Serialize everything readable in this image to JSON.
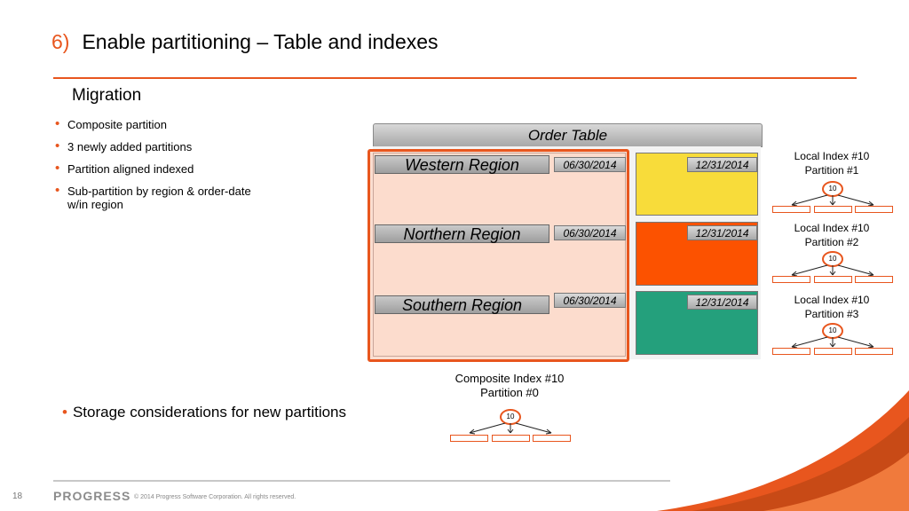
{
  "slide": {
    "number_prefix": "6)",
    "title": "Enable partitioning – Table and indexes",
    "subtitle": "Migration",
    "bullets": [
      "Composite  partition",
      "3 newly added partitions",
      "Partition aligned indexed",
      "Sub-partition by region & order-date w/in region"
    ],
    "bullet_big": "Storage considerations for new partitions",
    "bullet_glyph": "•"
  },
  "order_table": {
    "header": "Order Table",
    "regions": [
      {
        "name": "Western Region",
        "date_start": "06/30/2014",
        "date_end": "12/31/2014",
        "color": "#f8dc3a"
      },
      {
        "name": "Northern Region",
        "date_start": "06/30/2014",
        "date_end": "12/31/2014",
        "color": "#fc5200"
      },
      {
        "name": "Southern Region",
        "date_start": "06/30/2014",
        "date_end": "12/31/2014",
        "color": "#24a07c"
      }
    ]
  },
  "local_indexes": [
    {
      "line1": "Local Index #10",
      "line2": "Partition #1",
      "node": "10"
    },
    {
      "line1": "Local Index #10",
      "line2": "Partition #2",
      "node": "10"
    },
    {
      "line1": "Local Index #10",
      "line2": "Partition #3",
      "node": "10"
    }
  ],
  "composite_index": {
    "line1": "Composite Index #10",
    "line2": "Partition #0",
    "node": "10"
  },
  "footer": {
    "page_number": "18",
    "logo": "PROGRESS",
    "copyright": "© 2014 Progress Software Corporation. All rights reserved."
  },
  "colors": {
    "accent": "#e8561e"
  }
}
